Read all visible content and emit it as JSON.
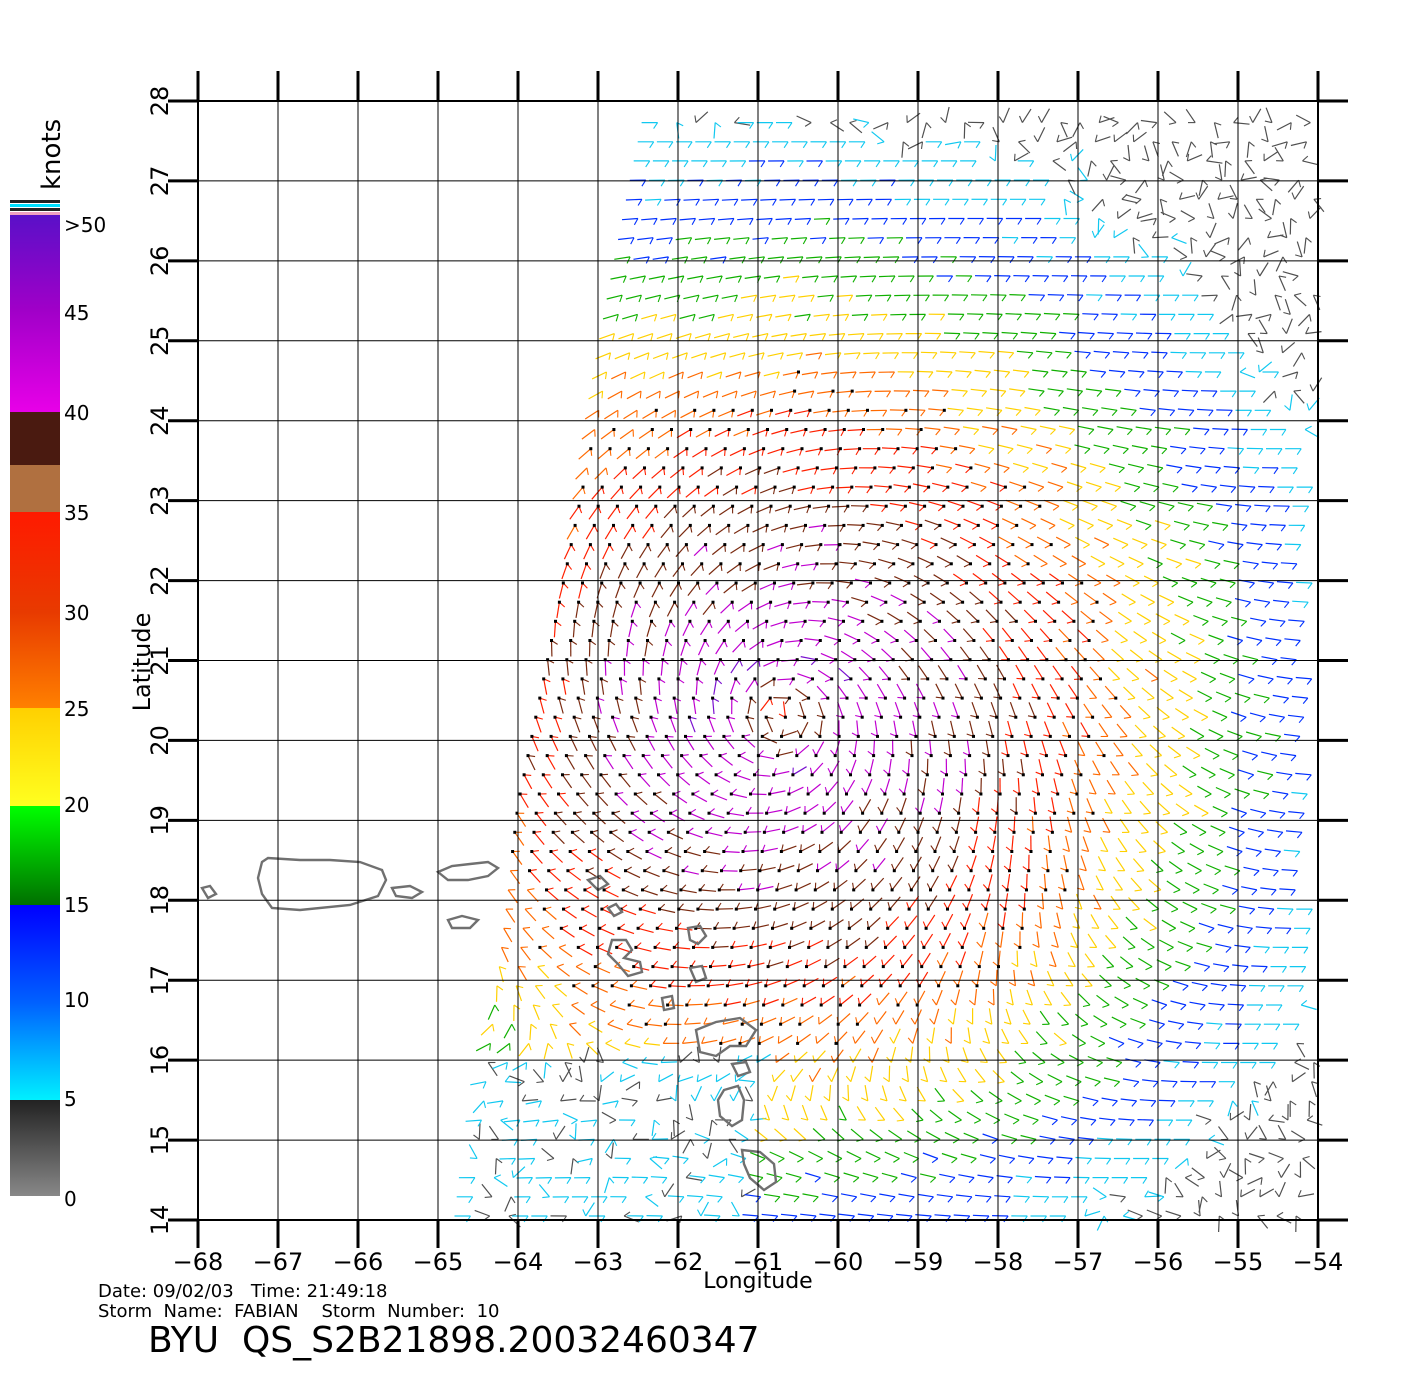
{
  "legend": {
    "unit_label": "knots",
    "ticks": [
      ">50",
      "45",
      "40",
      "35",
      "30",
      "25",
      "20",
      "15",
      "10",
      "5",
      "0"
    ],
    "colors": [
      "#5a10c8",
      "#a000c8",
      "#e800e8",
      "#4a1a10",
      "#b07040",
      "#ff1a00",
      "#e83a00",
      "#ff8000",
      "#ffd000",
      "#ffff20",
      "#00ff00",
      "#007000",
      "#0000ff",
      "#0060ff",
      "#00f0ff",
      "#222222",
      "#888888"
    ]
  },
  "axes": {
    "x_label": "Longitude",
    "y_label": "Latitude",
    "x_ticks": [
      "−68",
      "−67",
      "−66",
      "−65",
      "−64",
      "−63",
      "−62",
      "−61",
      "−60",
      "−59",
      "−58",
      "−57",
      "−56",
      "−55",
      "−54"
    ],
    "y_ticks": [
      "14",
      "15",
      "16",
      "17",
      "18",
      "19",
      "20",
      "21",
      "22",
      "23",
      "24",
      "25",
      "26",
      "27",
      "28"
    ],
    "x_range": [
      -68,
      -54
    ],
    "y_range": [
      14,
      28
    ]
  },
  "meta": {
    "date_line": "Date: 09/02/03   Time: 21:49:18",
    "storm_line": "Storm  Name:  FABIAN    Storm  Number:  10",
    "file_id": "BYU  QS_S2B21898.20032460347"
  },
  "map_data": {
    "storm_center": [
      -60.7,
      20.3
    ],
    "swath_west_edge": [
      [
        -62.2,
        28
      ],
      [
        -64.0,
        19.2
      ],
      [
        -64.6,
        14
      ]
    ],
    "islands": [
      "Puerto Rico",
      "Virgin Islands",
      "Leeward Islands",
      "Guadeloupe",
      "Dominica",
      "Martinique"
    ]
  }
}
